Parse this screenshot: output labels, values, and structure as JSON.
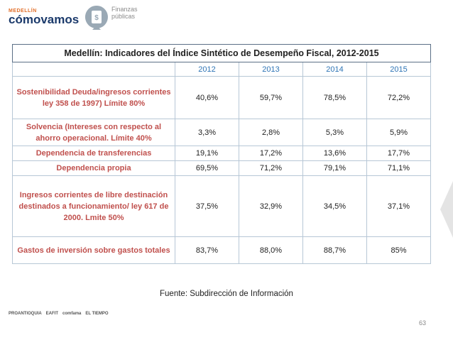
{
  "header": {
    "brand_small": "MEDELLÍN",
    "brand": "cómovamos",
    "section": "Finanzas públicas"
  },
  "table": {
    "title": "Medellín:  Indicadores del Índice Sintético de Desempeño Fiscal, 2012-2015",
    "columns": [
      "",
      "2012",
      "2013",
      "2014",
      "2015"
    ],
    "rows": [
      [
        "Sostenibilidad Deuda/ingresos corrientes ley 358 de 1997) Límite 80%",
        "40,6%",
        "59,7%",
        "78,5%",
        "72,2%"
      ],
      [
        "Solvencia (Intereses con respecto al ahorro operacional. Límite 40%",
        "3,3%",
        "2,8%",
        "5,3%",
        "5,9%"
      ],
      [
        "Dependencia de transferencias",
        "19,1%",
        "17,2%",
        "13,6%",
        "17,7%"
      ],
      [
        "Dependencia propia",
        "69,5%",
        "71,2%",
        "79,1%",
        "71,1%"
      ],
      [
        "Ingresos corrientes de libre destinación destinados a funcionamiento/ ley 617 de 2000. Lmite 50%",
        "37,5%",
        "32,9%",
        "34,5%",
        "37,1%"
      ],
      [
        "Gastos de inversión sobre gastos totales",
        "83,7%",
        "88,0%",
        "88,7%",
        "85%"
      ]
    ]
  },
  "source": "Fuente: Subdirección de Información",
  "page_number": "63",
  "sponsors": [
    "PROANTIOQUIA",
    "EAFIT",
    "comfama",
    "EL TIEMPO"
  ]
}
